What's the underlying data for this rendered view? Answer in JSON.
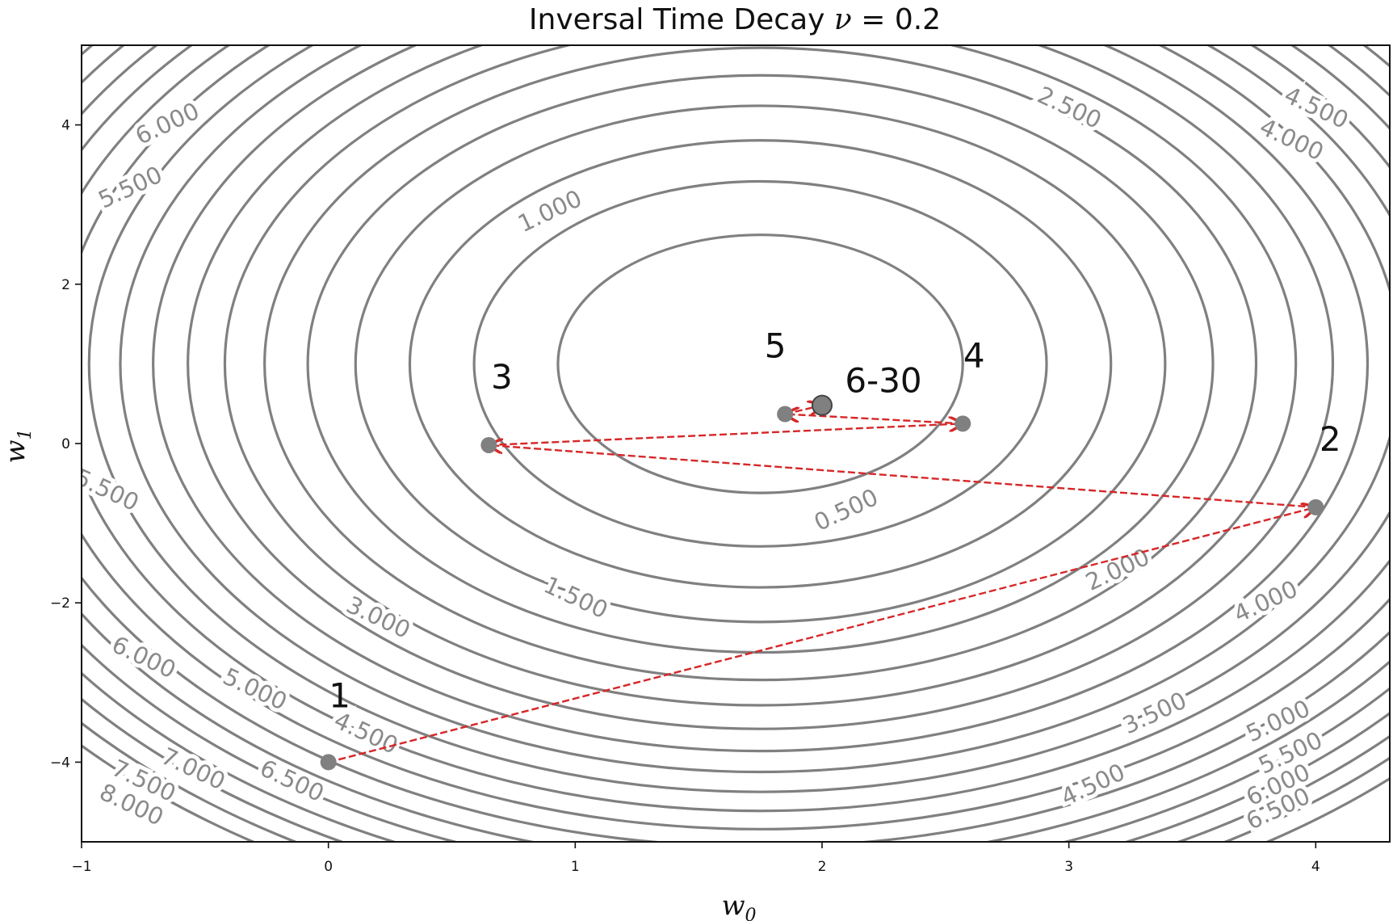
{
  "chart_data": {
    "type": "contour",
    "title": "Inversal Time Decay ν = 0.2",
    "title_parts": {
      "prefix": "Inversal Time Decay ",
      "symbol": "ν",
      "suffix": " = 0.2"
    },
    "xlabel": {
      "base": "w",
      "sub": "0"
    },
    "ylabel": {
      "base": "w",
      "sub": "1"
    },
    "xlim": [
      -1,
      4.3
    ],
    "ylim": [
      -5,
      5
    ],
    "xticks": [
      -1,
      0,
      1,
      2,
      3,
      4
    ],
    "xtick_labels": [
      "−1",
      "0",
      "1",
      "2",
      "3",
      "4"
    ],
    "yticks": [
      -4,
      -2,
      0,
      2,
      4
    ],
    "ytick_labels": [
      "−4",
      "−2",
      "0",
      "2",
      "4"
    ],
    "grid": false,
    "contour": {
      "center": [
        1.75,
        1.0
      ],
      "color": "#808080",
      "levels": [
        0.5,
        1.0,
        1.5,
        2.0,
        2.5,
        3.0,
        3.5,
        4.0,
        4.5,
        5.0,
        5.5,
        6.0,
        6.5,
        7.0,
        7.5,
        8.0,
        8.5,
        9.0,
        9.5,
        10.0
      ],
      "labels": [
        {
          "text": "0.500",
          "at": [
            2.1,
            -0.85
          ]
        },
        {
          "text": "1.000",
          "at": [
            0.9,
            2.9
          ]
        },
        {
          "text": "1.500",
          "at": [
            1.0,
            -1.95
          ]
        },
        {
          "text": "2.000",
          "at": [
            3.2,
            -1.6
          ]
        },
        {
          "text": "2.500",
          "at": [
            3.0,
            4.2
          ]
        },
        {
          "text": "3.000",
          "at": [
            0.2,
            -2.2
          ]
        },
        {
          "text": "3.500",
          "at": [
            3.35,
            -3.4
          ]
        },
        {
          "text": "4.000",
          "at": [
            3.9,
            3.8
          ]
        },
        {
          "text": "4.000",
          "at": [
            3.8,
            -2.0
          ]
        },
        {
          "text": "4.500",
          "at": [
            4.0,
            4.2
          ]
        },
        {
          "text": "4.500",
          "at": [
            3.1,
            -4.3
          ]
        },
        {
          "text": "4.500",
          "at": [
            0.15,
            -3.65
          ]
        },
        {
          "text": "5.000",
          "at": [
            -0.3,
            -3.1
          ]
        },
        {
          "text": "5.000",
          "at": [
            3.85,
            -3.5
          ]
        },
        {
          "text": "5.500",
          "at": [
            -0.8,
            3.2
          ]
        },
        {
          "text": "5.500",
          "at": [
            -0.9,
            -0.6
          ]
        },
        {
          "text": "5.500",
          "at": [
            3.9,
            -3.9
          ]
        },
        {
          "text": "6.000",
          "at": [
            -0.65,
            4.0
          ]
        },
        {
          "text": "6.000",
          "at": [
            -0.75,
            -2.7
          ]
        },
        {
          "text": "6.000",
          "at": [
            3.85,
            -4.3
          ]
        },
        {
          "text": "6.500",
          "at": [
            -0.15,
            -4.25
          ]
        },
        {
          "text": "6.500",
          "at": [
            3.85,
            -4.6
          ]
        },
        {
          "text": "7.000",
          "at": [
            -0.55,
            -4.1
          ]
        },
        {
          "text": "7.500",
          "at": [
            -0.75,
            -4.25
          ]
        },
        {
          "text": "8.000",
          "at": [
            -0.8,
            -4.55
          ]
        }
      ]
    },
    "series": [
      {
        "type": "path",
        "color": "#d62728",
        "linestyle": "dashed",
        "arrows": true,
        "x": [
          0.0,
          4.0,
          0.65,
          2.57,
          1.85,
          2.0
        ],
        "y": [
          -4.0,
          -0.8,
          -0.02,
          0.25,
          0.37,
          0.48
        ]
      }
    ],
    "points": [
      {
        "label": "1",
        "x": 0.0,
        "y": -4.0
      },
      {
        "label": "2",
        "x": 4.0,
        "y": -0.8
      },
      {
        "label": "3",
        "x": 0.65,
        "y": -0.02
      },
      {
        "label": "4",
        "x": 2.57,
        "y": 0.25
      },
      {
        "label": "5",
        "x": 1.85,
        "y": 0.37
      },
      {
        "label": "6-30",
        "x": 2.0,
        "y": 0.48
      }
    ]
  }
}
